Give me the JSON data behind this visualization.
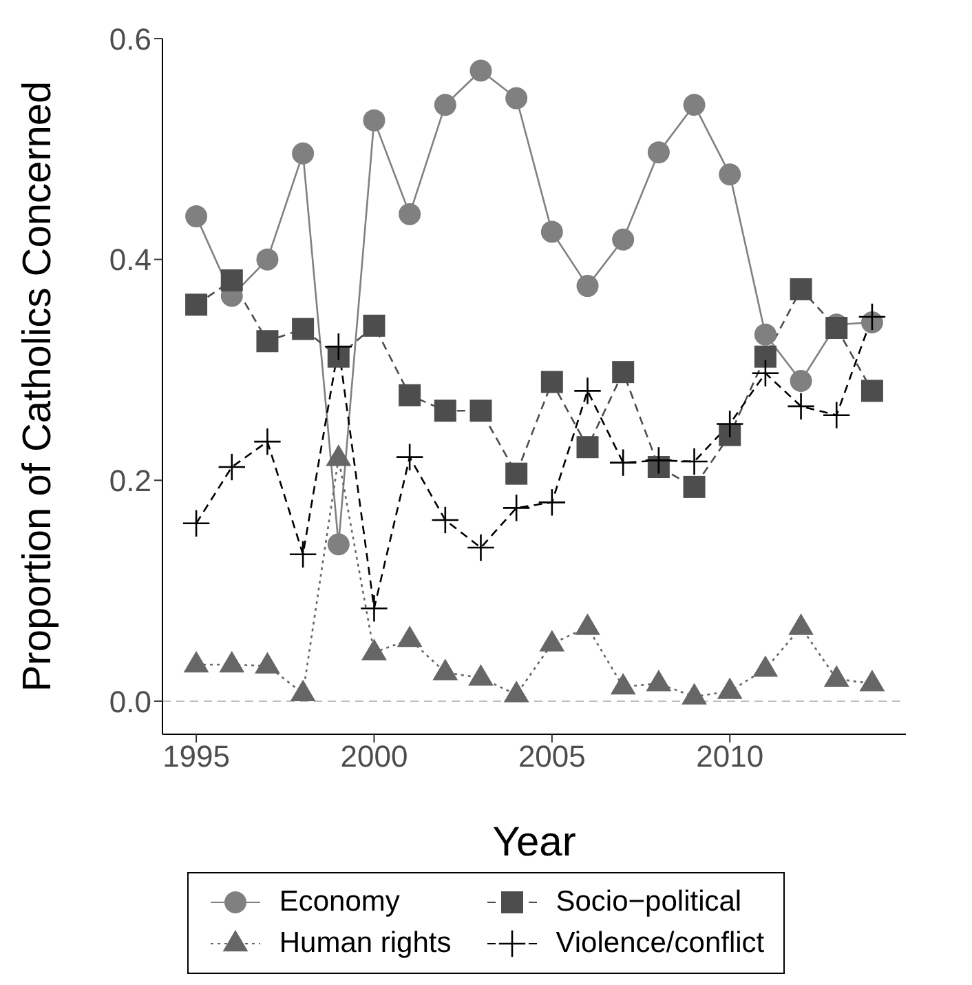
{
  "chart_data": {
    "type": "line",
    "xlabel": "Year",
    "ylabel": "Proportion of Catholics Concerned",
    "x": [
      1995,
      1996,
      1997,
      1998,
      1999,
      2000,
      2001,
      2002,
      2003,
      2004,
      2005,
      2006,
      2007,
      2008,
      2009,
      2010,
      2011,
      2012,
      2013,
      2014
    ],
    "series": [
      {
        "name": "Economy",
        "color": "#808080",
        "marker": "circle",
        "line_style": "solid",
        "values": [
          0.439,
          0.367,
          0.4,
          0.496,
          0.142,
          0.526,
          0.441,
          0.54,
          0.571,
          0.546,
          0.425,
          0.376,
          0.418,
          0.497,
          0.54,
          0.477,
          0.332,
          0.29,
          0.341,
          0.343
        ]
      },
      {
        "name": "Human rights",
        "color": "#666666",
        "marker": "triangle",
        "line_style": "dotted",
        "values": [
          0.033,
          0.033,
          0.032,
          0.007,
          0.22,
          0.044,
          0.056,
          0.026,
          0.021,
          0.006,
          0.052,
          0.067,
          0.013,
          0.016,
          0.004,
          0.009,
          0.029,
          0.067,
          0.02,
          0.016
        ]
      },
      {
        "name": "Socio−political",
        "color": "#4d4d4d",
        "marker": "square",
        "line_style": "dashed",
        "values": [
          0.359,
          0.381,
          0.326,
          0.337,
          0.312,
          0.34,
          0.277,
          0.263,
          0.263,
          0.206,
          0.289,
          0.23,
          0.298,
          0.212,
          0.194,
          0.241,
          0.312,
          0.373,
          0.338,
          0.281
        ]
      },
      {
        "name": "Violence/conflict",
        "color": "#000000",
        "marker": "cross",
        "line_style": "dashed",
        "values": [
          0.161,
          0.212,
          0.235,
          0.133,
          0.321,
          0.084,
          0.221,
          0.164,
          0.139,
          0.175,
          0.18,
          0.281,
          0.216,
          0.218,
          0.217,
          0.251,
          0.297,
          0.267,
          0.259,
          0.348
        ]
      }
    ],
    "xlim": [
      1994.05,
      2014.95
    ],
    "xticks": [
      1995,
      2000,
      2005,
      2010
    ],
    "ylim": [
      -0.03,
      0.6
    ],
    "yticks": [
      {
        "value": 0,
        "label": "0.0"
      },
      {
        "value": 0.2,
        "label": "0.2"
      },
      {
        "value": 0.4,
        "label": "0.4"
      },
      {
        "value": 0.6,
        "label": "0.6"
      }
    ],
    "ref_lines": [
      {
        "axis": "y",
        "value": 0,
        "color": "#bebebe",
        "line_style": "dashed"
      }
    ],
    "grid": false,
    "legend": "bottom"
  }
}
